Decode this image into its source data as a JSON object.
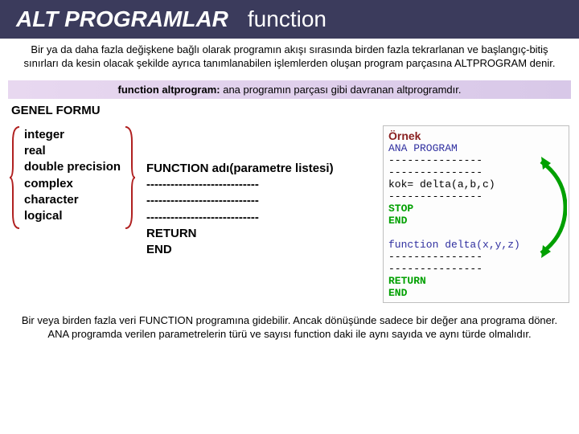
{
  "title": {
    "main": "ALT PROGRAMLAR",
    "sub": "function"
  },
  "intro": "Bir ya da daha fazla değişkene bağlı olarak programın akışı sırasında birden fazla tekrarlanan ve başlangıç-bitiş sınırları da kesin olacak şekilde ayrıca tanımlanabilen işlemlerden oluşan program parçasına ALTPROGRAM denir.",
  "def_bold": "function altprogram:",
  "def_rest": " ana programın parçası gibi davranan altprogramdır.",
  "genel_formu": "GENEL FORMU",
  "types": [
    "integer",
    "real",
    "double precision",
    "complex",
    "character",
    "logical"
  ],
  "func_lines": [
    "FUNCTION  adı(parametre listesi)",
    "----------------------------",
    "----------------------------",
    "----------------------------",
    "RETURN",
    "END"
  ],
  "ornek": {
    "title": "Örnek",
    "lines": [
      {
        "text": "       ANA PROGRAM",
        "cls": "code-blue"
      },
      {
        "text": "---------------",
        "cls": ""
      },
      {
        "text": "---------------",
        "cls": ""
      },
      {
        "text": "kok= delta(a,b,c)",
        "cls": ""
      },
      {
        "text": "---------------",
        "cls": ""
      },
      {
        "text": "STOP",
        "cls": "code-green"
      },
      {
        "text": "END",
        "cls": "code-green"
      },
      {
        "text": "",
        "cls": ""
      },
      {
        "text": "function delta(x,y,z)",
        "cls": "code-blue"
      },
      {
        "text": "---------------",
        "cls": ""
      },
      {
        "text": "---------------",
        "cls": ""
      },
      {
        "text": "RETURN",
        "cls": "code-green"
      },
      {
        "text": "END",
        "cls": "code-green"
      }
    ]
  },
  "brace_color": "#b02020",
  "arrow_color": "#00a000",
  "bottom": "Bir veya birden fazla veri FUNCTION programına gidebilir. Ancak dönüşünde sadece bir değer ana programa döner. ANA programda verilen parametrelerin türü ve sayısı function daki ile aynı sayıda ve aynı türde olmalıdır."
}
